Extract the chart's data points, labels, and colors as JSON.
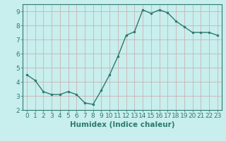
{
  "xlabel": "Humidex (Indice chaleur)",
  "x": [
    0,
    1,
    2,
    3,
    4,
    5,
    6,
    7,
    8,
    9,
    10,
    11,
    12,
    13,
    14,
    15,
    16,
    17,
    18,
    19,
    20,
    21,
    22,
    23
  ],
  "y": [
    4.5,
    4.1,
    3.3,
    3.1,
    3.1,
    3.3,
    3.1,
    2.5,
    2.4,
    3.4,
    4.5,
    5.8,
    7.3,
    7.55,
    9.1,
    8.85,
    9.1,
    8.9,
    8.3,
    7.9,
    7.5,
    7.5,
    7.5,
    7.3
  ],
  "line_color": "#2d7a6e",
  "marker": ".",
  "marker_size": 3,
  "background_color": "#c8eeed",
  "grid_color": "#c8a8a8",
  "ylim": [
    2,
    9.5
  ],
  "xlim": [
    -0.5,
    23.5
  ],
  "yticks": [
    2,
    3,
    4,
    5,
    6,
    7,
    8,
    9
  ],
  "xticks": [
    0,
    1,
    2,
    3,
    4,
    5,
    6,
    7,
    8,
    9,
    10,
    11,
    12,
    13,
    14,
    15,
    16,
    17,
    18,
    19,
    20,
    21,
    22,
    23
  ],
  "tick_fontsize": 6.5,
  "xlabel_fontsize": 7.5,
  "axis_color": "#2d7a6e",
  "spine_color": "#2d7a6e",
  "linewidth": 1.0
}
